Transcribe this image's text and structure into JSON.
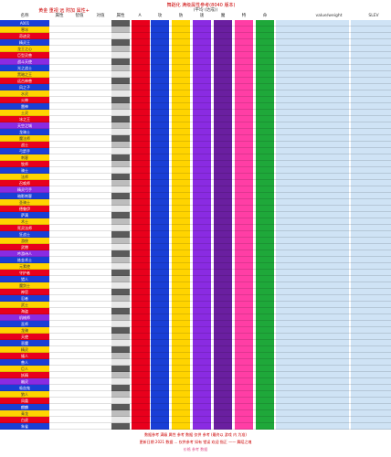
{
  "sheet": {
    "title": "舞蹈化 满级属性参考(8040 版本)",
    "subtitle": "黄金 重视 远 附加 属性+",
    "mid_subhead": "(平均    (达成))",
    "headers": {
      "name": "名称",
      "c1": "属性",
      "c2": "智值",
      "c3": "对值",
      "c4": "属性",
      "c5": "A",
      "c6": "攻",
      "c7": "防",
      "c8": "速",
      "c9": "魔",
      "c10": "特",
      "c11": "命",
      "c12": "价",
      "right1": "value/weight",
      "right2": "SLEV"
    },
    "rows": [
      {
        "label": "A001"
      },
      {
        "label": "寒冰"
      },
      {
        "label": "奇迹灵"
      },
      {
        "label": "精灵王"
      },
      {
        "label": "龙王之心"
      },
      {
        "label": "巨型灵兽"
      },
      {
        "label": "战斗天使"
      },
      {
        "label": "光之战士"
      },
      {
        "label": "黑暗之王"
      },
      {
        "label": "远古神兽"
      },
      {
        "label": "风之子"
      },
      {
        "label": "水灵"
      },
      {
        "label": "火神"
      },
      {
        "label": "雷神"
      },
      {
        "label": "土灵"
      },
      {
        "label": "冰之王"
      },
      {
        "label": "天空之城"
      },
      {
        "label": "龙骑士"
      },
      {
        "label": "魔法师"
      },
      {
        "label": "战士"
      },
      {
        "label": "弓箭手"
      },
      {
        "label": "刺客"
      },
      {
        "label": "牧师"
      },
      {
        "label": "骑士"
      },
      {
        "label": "法师"
      },
      {
        "label": "召唤师"
      },
      {
        "label": "精灵弓手"
      },
      {
        "label": "暗影刺客"
      },
      {
        "label": "圣骑士"
      },
      {
        "label": "德鲁伊"
      },
      {
        "label": "萨满"
      },
      {
        "label": "术士"
      },
      {
        "label": "死灵法师"
      },
      {
        "label": "狂战士"
      },
      {
        "label": "游侠"
      },
      {
        "label": "武僧"
      },
      {
        "label": "吟游诗人"
      },
      {
        "label": "炼金术士"
      },
      {
        "label": "元素使"
      },
      {
        "label": "守护者"
      },
      {
        "label": "猎人"
      },
      {
        "label": "魔剑士"
      },
      {
        "label": "神官"
      },
      {
        "label": "忍者"
      },
      {
        "label": "武士"
      },
      {
        "label": "海盗"
      },
      {
        "label": "机械师"
      },
      {
        "label": "巫师"
      },
      {
        "label": "龙骑"
      },
      {
        "label": "天使"
      },
      {
        "label": "恶魔"
      },
      {
        "label": "精灵"
      },
      {
        "label": "矮人"
      },
      {
        "label": "兽人"
      },
      {
        "label": "巨人"
      },
      {
        "label": "妖精"
      },
      {
        "label": "幽灵"
      },
      {
        "label": "吸血鬼"
      },
      {
        "label": "狼人"
      },
      {
        "label": "凤凰"
      },
      {
        "label": "麒麟"
      },
      {
        "label": "青龙"
      },
      {
        "label": "白虎"
      },
      {
        "label": "朱雀"
      }
    ],
    "footer": {
      "line1": "数据参考 满级 属性 参考 数据 仅供 参考  (最终以 游戏 内 为准)",
      "line2": "更新日期 2021 数据 ... 仅供参考 如有 错误 欢迎 指正 —— 舞蹈之魂",
      "line3": "价格 参考 数据"
    }
  },
  "colors": {
    "red": "#e8001c",
    "blue": "#1a3fd6",
    "yellow": "#ffd400",
    "purple": "#8a2be2",
    "violet": "#6a1fa0",
    "pink": "#ff3ea5",
    "green": "#1fa83a",
    "lightblue": "#cfe3f5",
    "darkcell": "#5a5a5a"
  }
}
